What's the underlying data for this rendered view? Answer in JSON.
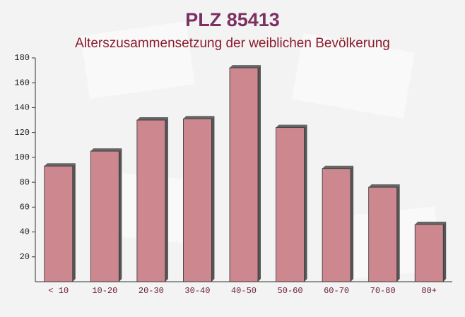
{
  "chart_data": {
    "type": "bar",
    "title": "PLZ 85413",
    "subtitle": "Alterszusammensetzung der weiblichen Bevölkerung",
    "categories": [
      "< 10",
      "10-20",
      "20-30",
      "30-40",
      "40-50",
      "50-60",
      "60-70",
      "70-80",
      "80+"
    ],
    "values": [
      93,
      105,
      130,
      131,
      172,
      124,
      91,
      76,
      46
    ],
    "color": "#c4737d",
    "ylim": [
      0,
      180
    ],
    "yticks": [
      20,
      40,
      60,
      80,
      100,
      120,
      140,
      160,
      180
    ],
    "grid": false
  }
}
